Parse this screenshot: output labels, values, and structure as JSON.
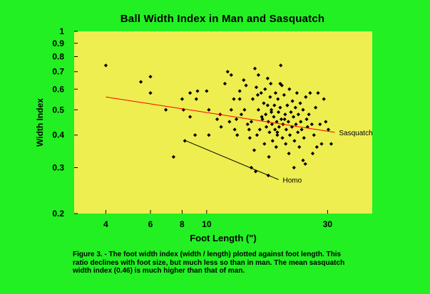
{
  "chart_data": {
    "type": "scatter",
    "title": "Ball Width Index in Man and Sasquatch",
    "xlabel": "Foot Length (\")",
    "ylabel": "Width Index",
    "x_scale": "log",
    "y_scale": "log",
    "xlim": [
      3,
      45
    ],
    "ylim": [
      0.2,
      1
    ],
    "x_ticks": [
      4,
      6,
      8,
      10,
      30
    ],
    "y_ticks": [
      0.2,
      0.3,
      0.4,
      0.5,
      0.6,
      0.7,
      0.8,
      0.9,
      1
    ],
    "plot_background": "#eeee50",
    "page_background": "#22f022",
    "points": [
      [
        4.0,
        0.74
      ],
      [
        5.5,
        0.64
      ],
      [
        6.0,
        0.67
      ],
      [
        6.0,
        0.58
      ],
      [
        6.9,
        0.5
      ],
      [
        7.4,
        0.33
      ],
      [
        8.0,
        0.55
      ],
      [
        8.1,
        0.5
      ],
      [
        8.2,
        0.38
      ],
      [
        8.6,
        0.58
      ],
      [
        8.6,
        0.47
      ],
      [
        9.0,
        0.4
      ],
      [
        9.1,
        0.55
      ],
      [
        9.2,
        0.59
      ],
      [
        10.0,
        0.59
      ],
      [
        10.2,
        0.5
      ],
      [
        10.2,
        0.4
      ],
      [
        11.0,
        0.46
      ],
      [
        11.3,
        0.48
      ],
      [
        11.8,
        0.63
      ],
      [
        12.1,
        0.7
      ],
      [
        12.5,
        0.68
      ],
      [
        12.8,
        0.55
      ],
      [
        12.5,
        0.5
      ],
      [
        12.9,
        0.42
      ],
      [
        13.1,
        0.46
      ],
      [
        13.5,
        0.55
      ],
      [
        13.5,
        0.59
      ],
      [
        13.2,
        0.4
      ],
      [
        14.0,
        0.65
      ],
      [
        14.1,
        0.5
      ],
      [
        14.3,
        0.62
      ],
      [
        14.5,
        0.44
      ],
      [
        14.8,
        0.39
      ],
      [
        15.0,
        0.45
      ],
      [
        15.2,
        0.55
      ],
      [
        15.4,
        0.35
      ],
      [
        15.5,
        0.72
      ],
      [
        15.7,
        0.61
      ],
      [
        15.8,
        0.4
      ],
      [
        15.9,
        0.57
      ],
      [
        16.0,
        0.5
      ],
      [
        16.2,
        0.42
      ],
      [
        16.4,
        0.58
      ],
      [
        16.6,
        0.46
      ],
      [
        16.8,
        0.53
      ],
      [
        16.9,
        0.37
      ],
      [
        17.0,
        0.6
      ],
      [
        17.1,
        0.48
      ],
      [
        17.2,
        0.43
      ],
      [
        17.4,
        0.52
      ],
      [
        17.5,
        0.45
      ],
      [
        17.6,
        0.33
      ],
      [
        17.7,
        0.41
      ],
      [
        17.8,
        0.56
      ],
      [
        17.9,
        0.63
      ],
      [
        18.0,
        0.49
      ],
      [
        18.1,
        0.44
      ],
      [
        18.2,
        0.38
      ],
      [
        18.4,
        0.47
      ],
      [
        18.5,
        0.52
      ],
      [
        18.6,
        0.42
      ],
      [
        18.7,
        0.58
      ],
      [
        18.8,
        0.36
      ],
      [
        18.9,
        0.45
      ],
      [
        19.0,
        0.4
      ],
      [
        19.1,
        0.55
      ],
      [
        19.2,
        0.49
      ],
      [
        19.3,
        0.43
      ],
      [
        19.5,
        0.51
      ],
      [
        19.6,
        0.74
      ],
      [
        19.7,
        0.46
      ],
      [
        19.8,
        0.62
      ],
      [
        19.9,
        0.39
      ],
      [
        20.0,
        0.44
      ],
      [
        20.2,
        0.57
      ],
      [
        20.4,
        0.48
      ],
      [
        20.5,
        0.37
      ],
      [
        20.6,
        0.42
      ],
      [
        20.8,
        0.52
      ],
      [
        21.0,
        0.45
      ],
      [
        21.1,
        0.34
      ],
      [
        21.2,
        0.6
      ],
      [
        21.3,
        0.4
      ],
      [
        21.5,
        0.49
      ],
      [
        21.7,
        0.43
      ],
      [
        21.8,
        0.54
      ],
      [
        22.0,
        0.47
      ],
      [
        22.2,
        0.38
      ],
      [
        22.4,
        0.51
      ],
      [
        22.5,
        0.44
      ],
      [
        22.7,
        0.58
      ],
      [
        22.9,
        0.41
      ],
      [
        23.0,
        0.48
      ],
      [
        23.2,
        0.36
      ],
      [
        23.4,
        0.53
      ],
      [
        23.5,
        0.45
      ],
      [
        23.7,
        0.42
      ],
      [
        24.0,
        0.5
      ],
      [
        24.2,
        0.39
      ],
      [
        24.5,
        0.31
      ],
      [
        24.6,
        0.56
      ],
      [
        24.8,
        0.46
      ],
      [
        25.0,
        0.43
      ],
      [
        25.3,
        0.48
      ],
      [
        25.6,
        0.58
      ],
      [
        26.0,
        0.44
      ],
      [
        26.2,
        0.34
      ],
      [
        26.5,
        0.4
      ],
      [
        26.9,
        0.51
      ],
      [
        27.2,
        0.36
      ],
      [
        27.5,
        0.58
      ],
      [
        28.0,
        0.44
      ],
      [
        28.4,
        0.37
      ],
      [
        29.0,
        0.55
      ],
      [
        29.5,
        0.45
      ],
      [
        30.2,
        0.42
      ],
      [
        31.0,
        0.37
      ],
      [
        19.5,
        0.63
      ],
      [
        17.4,
        0.66
      ],
      [
        16.0,
        0.68
      ],
      [
        20.8,
        0.52
      ],
      [
        22.1,
        0.3
      ],
      [
        24.0,
        0.32
      ],
      [
        19.0,
        0.41
      ],
      [
        16.5,
        0.47
      ],
      [
        15.0,
        0.3
      ],
      [
        15.6,
        0.29
      ],
      [
        17.5,
        0.28
      ],
      [
        13.7,
        0.48
      ],
      [
        14.7,
        0.42
      ],
      [
        11.4,
        0.43
      ],
      [
        12.3,
        0.45
      ],
      [
        18.0,
        0.5
      ],
      [
        20.3,
        0.46
      ]
    ],
    "fit_lines": [
      {
        "name": "Sasquatch",
        "color": "#ff0000",
        "x": [
          4,
          32
        ],
        "y": [
          0.56,
          0.41
        ]
      },
      {
        "name": "Homo",
        "color": "#000000",
        "x": [
          8.3,
          19.2
        ],
        "y": [
          0.38,
          0.27
        ]
      }
    ]
  },
  "caption": "Figure 3. - The foot width index (width / length) plotted against foot length.  This\nratio declines with foot size, but much less so than in man. The mean sasquatch\nwidth index (0.46) is much higher than that of man."
}
